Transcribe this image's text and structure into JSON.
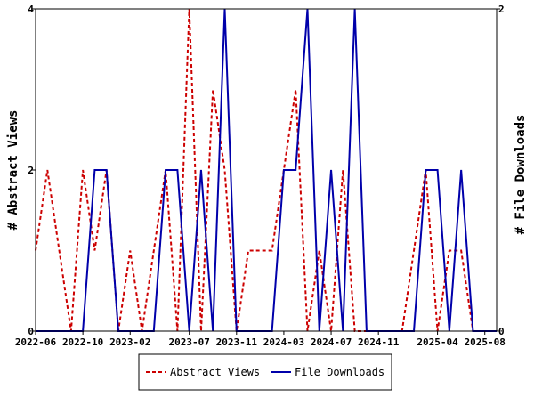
{
  "chart_data": {
    "type": "line",
    "grid": false,
    "legend_position": "bottom-center",
    "x_ticks": [
      "2022-06",
      "2022-10",
      "2023-02",
      "2023-07",
      "2023-11",
      "2024-03",
      "2024-07",
      "2024-11",
      "2025-04",
      "2025-08"
    ],
    "x_months": [
      "2022-06",
      "2022-07",
      "2022-08",
      "2022-09",
      "2022-10",
      "2022-11",
      "2022-12",
      "2023-01",
      "2023-02",
      "2023-03",
      "2023-04",
      "2023-05",
      "2023-06",
      "2023-07",
      "2023-08",
      "2023-09",
      "2023-10",
      "2023-11",
      "2023-12",
      "2024-01",
      "2024-02",
      "2024-03",
      "2024-04",
      "2024-05",
      "2024-06",
      "2024-07",
      "2024-08",
      "2024-09",
      "2024-10",
      "2024-11",
      "2024-12",
      "2025-01",
      "2025-02",
      "2025-03",
      "2025-04",
      "2025-05",
      "2025-06",
      "2025-07",
      "2025-08",
      "2025-09"
    ],
    "y_left": {
      "label": "# Abstract Views",
      "min": 0,
      "max": 4,
      "ticks": [
        "0",
        "2",
        "4"
      ]
    },
    "y_right": {
      "label": "# File Downloads",
      "min": 0,
      "max": 2,
      "ticks": [
        "0",
        "2"
      ]
    },
    "series": [
      {
        "name": "Abstract Views",
        "axis": "left",
        "color": "#cc0000",
        "dash": true,
        "values": [
          1,
          2,
          1,
          0,
          2,
          1,
          2,
          0,
          1,
          0,
          1,
          2,
          0,
          4,
          0,
          3,
          2,
          0,
          1,
          1,
          1,
          2,
          3,
          0,
          1,
          0,
          2,
          0,
          0,
          0,
          0,
          0,
          1,
          2,
          0,
          1,
          1,
          0,
          0,
          0
        ]
      },
      {
        "name": "File Downloads",
        "axis": "right",
        "color": "#0000aa",
        "dash": false,
        "values": [
          0,
          0,
          0,
          0,
          0,
          1,
          1,
          0,
          0,
          0,
          0,
          1,
          1,
          0,
          1,
          0,
          2,
          0,
          0,
          0,
          0,
          1,
          1,
          2,
          0,
          1,
          0,
          2,
          0,
          0,
          0,
          0,
          0,
          1,
          1,
          0,
          1,
          0,
          0,
          0
        ]
      }
    ]
  }
}
